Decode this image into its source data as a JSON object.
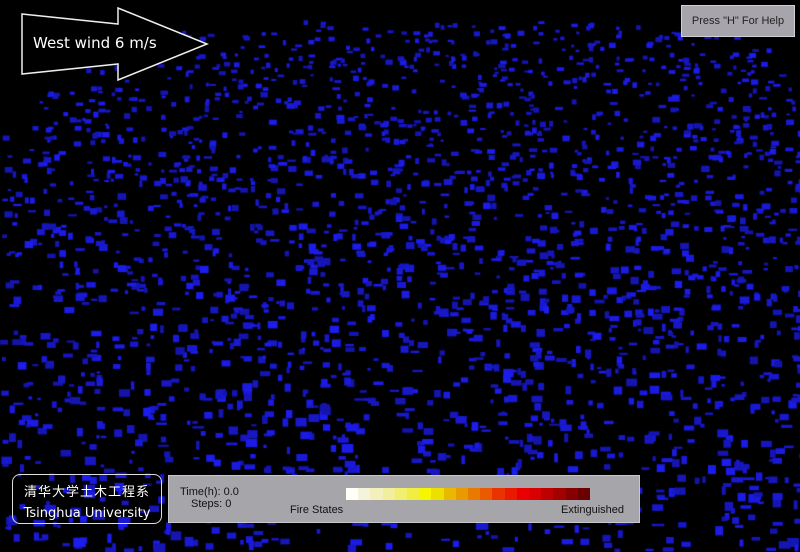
{
  "wind": {
    "label": "West wind 6 m/s",
    "icon": "arrow-right-icon"
  },
  "help_button": {
    "label": "Press \"H\" For Help"
  },
  "logo": {
    "chinese": "清华大学土木工程系",
    "english": "Tsinghua University"
  },
  "status": {
    "time_label": "Time(h):",
    "time_value": "0.0",
    "steps_label": "Steps:",
    "steps_value": "0"
  },
  "legend": {
    "start_label": "Fire States",
    "end_label": "Extinguished",
    "colors": [
      "#fffff8",
      "#f6f3dc",
      "#f3f0bb",
      "#f2ef9c",
      "#f2ef70",
      "#f2ee40",
      "#f6f600",
      "#ede000",
      "#e9b800",
      "#e99a00",
      "#e97a00",
      "#ea5a00",
      "#ea3300",
      "#ea1a00",
      "#ea0000",
      "#d80000",
      "#bd0000",
      "#a30000",
      "#860000",
      "#6a0000"
    ]
  },
  "scene": {
    "building_color": "#1a1ad6",
    "background": "#000000"
  }
}
